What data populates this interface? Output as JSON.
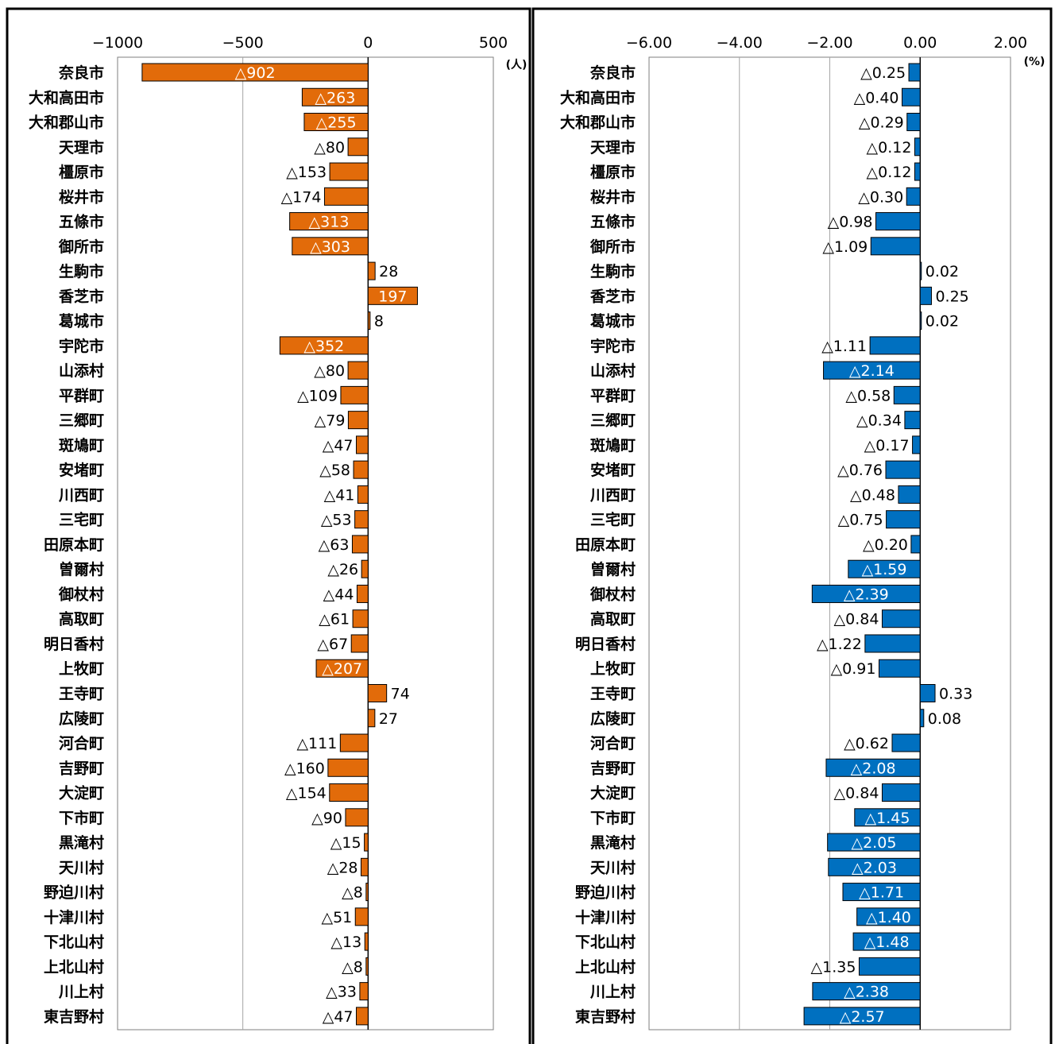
{
  "chart_data": [
    {
      "type": "bar",
      "orientation": "horizontal",
      "title": "",
      "unit_label": "(人)",
      "xlim": [
        -1000,
        500
      ],
      "ticks": [
        -1000,
        -500,
        0,
        500
      ],
      "tick_labels": [
        "−1000",
        "−500",
        "0",
        "500"
      ],
      "grid": true,
      "bar_color": "#E26B0A",
      "categories": [
        "奈良市",
        "大和高田市",
        "大和郡山市",
        "天理市",
        "橿原市",
        "桜井市",
        "五條市",
        "御所市",
        "生駒市",
        "香芝市",
        "葛城市",
        "宇陀市",
        "山添村",
        "平群町",
        "三郷町",
        "斑鳩町",
        "安堵町",
        "川西町",
        "三宅町",
        "田原本町",
        "曽爾村",
        "御杖村",
        "高取町",
        "明日香村",
        "上牧町",
        "王寺町",
        "広陵町",
        "河合町",
        "吉野町",
        "大淀町",
        "下市町",
        "黒滝村",
        "天川村",
        "野迫川村",
        "十津川村",
        "下北山村",
        "上北山村",
        "川上村",
        "東吉野村"
      ],
      "values": [
        -902,
        -263,
        -255,
        -80,
        -153,
        -174,
        -313,
        -303,
        28,
        197,
        8,
        -352,
        -80,
        -109,
        -79,
        -47,
        -58,
        -41,
        -53,
        -63,
        -26,
        -44,
        -61,
        -67,
        -207,
        74,
        27,
        -111,
        -160,
        -154,
        -90,
        -15,
        -28,
        -8,
        -51,
        -13,
        -8,
        -33,
        -47
      ],
      "value_labels": [
        "△902",
        "△263",
        "△255",
        "△80",
        "△153",
        "△174",
        "△313",
        "△303",
        "28",
        "197",
        "8",
        "△352",
        "△80",
        "△109",
        "△79",
        "△47",
        "△58",
        "△41",
        "△53",
        "△63",
        "△26",
        "△44",
        "△61",
        "△67",
        "△207",
        "74",
        "27",
        "△111",
        "△160",
        "△154",
        "△90",
        "△15",
        "△28",
        "△8",
        "△51",
        "△13",
        "△8",
        "△33",
        "△47"
      ]
    },
    {
      "type": "bar",
      "orientation": "horizontal",
      "title": "",
      "unit_label": "(%)",
      "xlim": [
        -6,
        2
      ],
      "ticks": [
        -6,
        -4,
        -2,
        0,
        2
      ],
      "tick_labels": [
        "−6.00",
        "−4.00",
        "−2.00",
        "0.00",
        "2.00"
      ],
      "grid": true,
      "bar_color": "#0070C0",
      "categories": [
        "奈良市",
        "大和高田市",
        "大和郡山市",
        "天理市",
        "橿原市",
        "桜井市",
        "五條市",
        "御所市",
        "生駒市",
        "香芝市",
        "葛城市",
        "宇陀市",
        "山添村",
        "平群町",
        "三郷町",
        "斑鳩町",
        "安堵町",
        "川西町",
        "三宅町",
        "田原本町",
        "曽爾村",
        "御杖村",
        "高取町",
        "明日香村",
        "上牧町",
        "王寺町",
        "広陵町",
        "河合町",
        "吉野町",
        "大淀町",
        "下市町",
        "黒滝村",
        "天川村",
        "野迫川村",
        "十津川村",
        "下北山村",
        "上北山村",
        "川上村",
        "東吉野村"
      ],
      "values": [
        -0.25,
        -0.4,
        -0.29,
        -0.12,
        -0.12,
        -0.3,
        -0.98,
        -1.09,
        0.02,
        0.25,
        0.02,
        -1.11,
        -2.14,
        -0.58,
        -0.34,
        -0.17,
        -0.76,
        -0.48,
        -0.75,
        -0.2,
        -1.59,
        -2.39,
        -0.84,
        -1.22,
        -0.91,
        0.33,
        0.08,
        -0.62,
        -2.08,
        -0.84,
        -1.45,
        -2.05,
        -2.03,
        -1.71,
        -1.4,
        -1.48,
        -1.35,
        -2.38,
        -2.57
      ],
      "value_labels": [
        "△0.25",
        "△0.40",
        "△0.29",
        "△0.12",
        "△0.12",
        "△0.30",
        "△0.98",
        "△1.09",
        "0.02",
        "0.25",
        "0.02",
        "△1.11",
        "△2.14",
        "△0.58",
        "△0.34",
        "△0.17",
        "△0.76",
        "△0.48",
        "△0.75",
        "△0.20",
        "△1.59",
        "△2.39",
        "△0.84",
        "△1.22",
        "△0.91",
        "0.33",
        "0.08",
        "△0.62",
        "△2.08",
        "△0.84",
        "△1.45",
        "△2.05",
        "△2.03",
        "△1.71",
        "△1.40",
        "△1.48",
        "△1.35",
        "△2.38",
        "△2.57"
      ]
    }
  ]
}
